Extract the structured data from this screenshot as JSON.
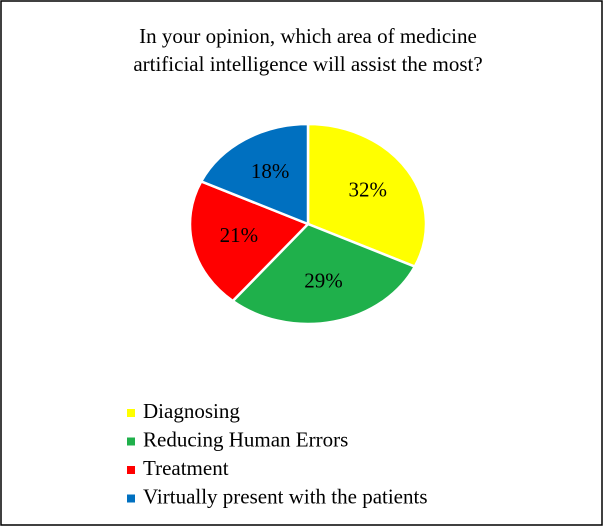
{
  "chart_data": {
    "type": "pie",
    "title": [
      "In your opinion, which area of medicine",
      "artificial intelligence will assist the most?"
    ],
    "categories": [
      "Diagnosing",
      "Reducing Human Errors",
      "Treatment",
      "Virtually present with the patients"
    ],
    "values": [
      32,
      29,
      21,
      18
    ],
    "value_labels": [
      "32%",
      "29%",
      "21%",
      "18%"
    ],
    "colors": [
      "#ffff00",
      "#1fb04b",
      "#ff0000",
      "#0070c0"
    ],
    "legend": "bottom"
  }
}
